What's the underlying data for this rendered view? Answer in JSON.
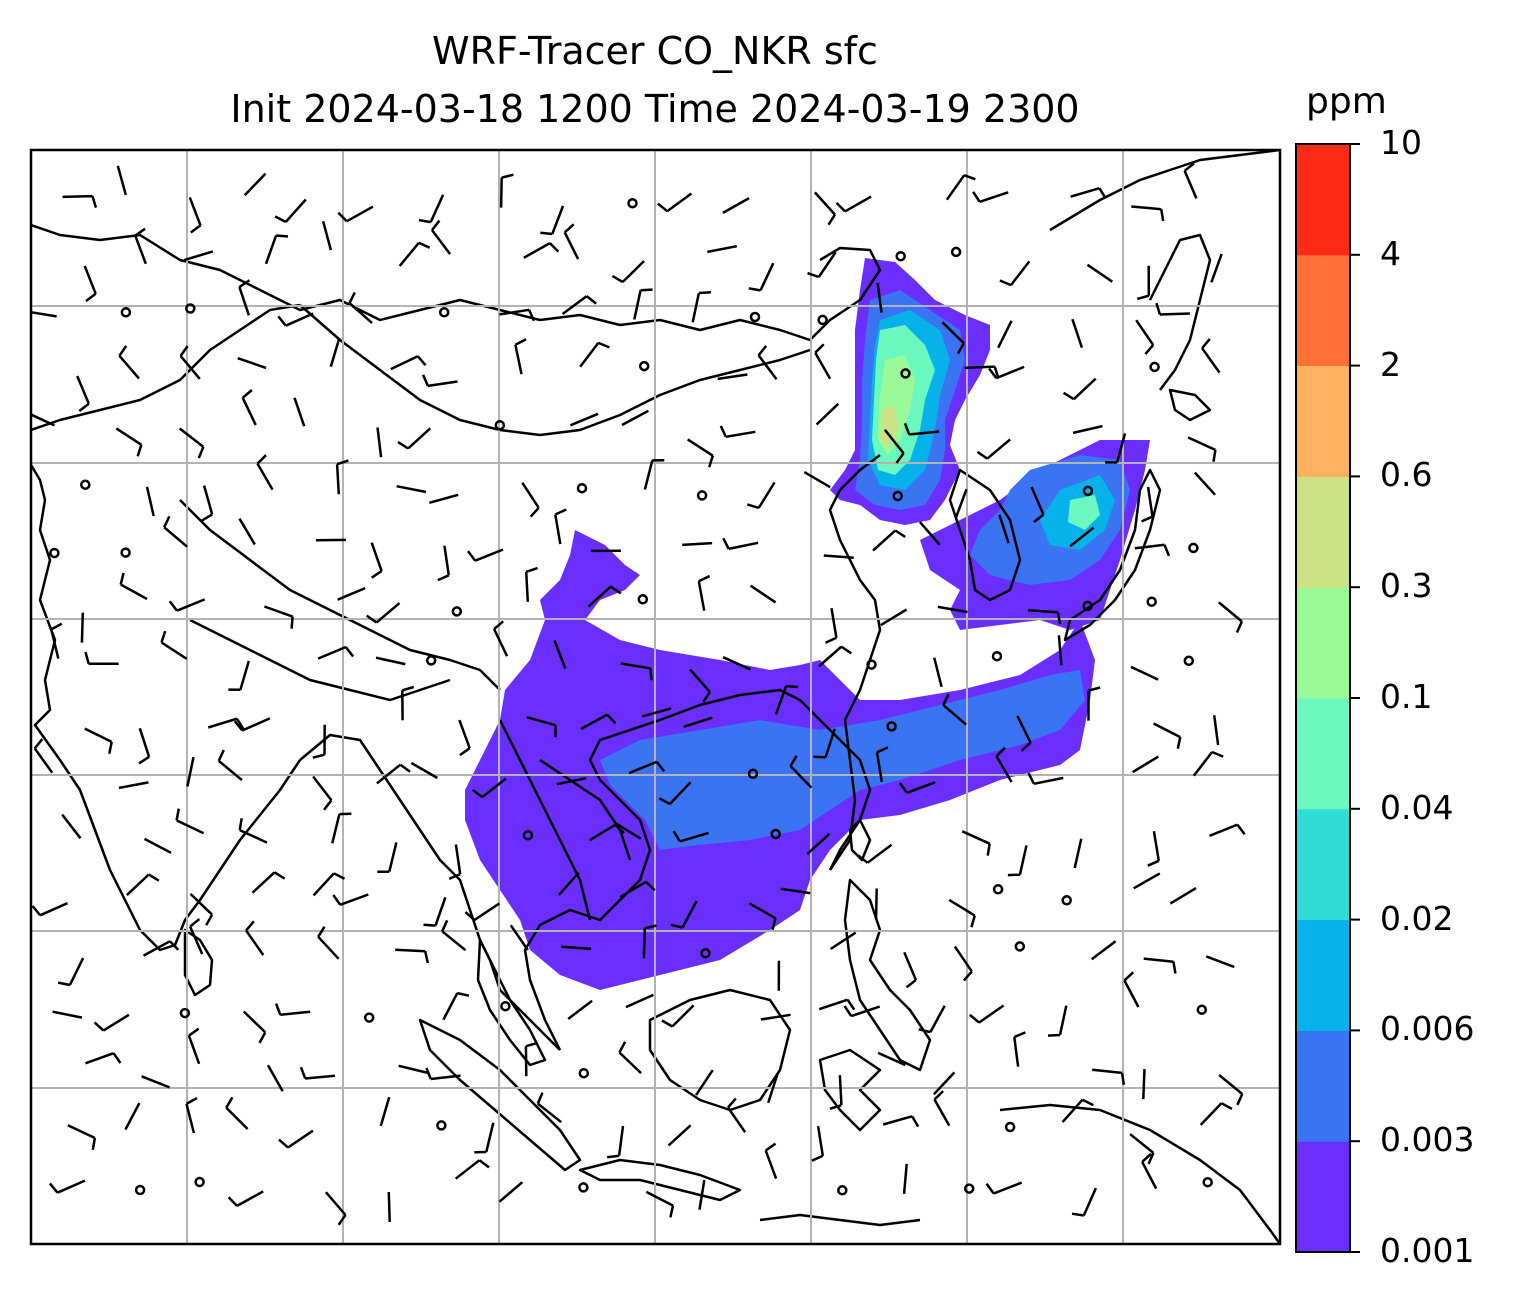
{
  "title_line1": "WRF-Tracer CO_NKR sfc",
  "title_line2": "Init 2024-03-18 1200 Time 2024-03-19 2300",
  "colorbar": {
    "units": "ppm",
    "levels": [
      "0.001",
      "0.003",
      "0.006",
      "0.02",
      "0.04",
      "0.1",
      "0.3",
      "0.6",
      "2",
      "4",
      "10"
    ],
    "colors": [
      "#6a2eff",
      "#3a74f3",
      "#07b1ea",
      "#2fddd4",
      "#6af8be",
      "#9bfa98",
      "#cde185",
      "#ffb161",
      "#ff7039",
      "#fe2a17"
    ]
  },
  "map": {
    "land_outline_color": "#000000",
    "gridline_color": "#b3b3b3",
    "wind_barb_color": "#000000"
  }
}
